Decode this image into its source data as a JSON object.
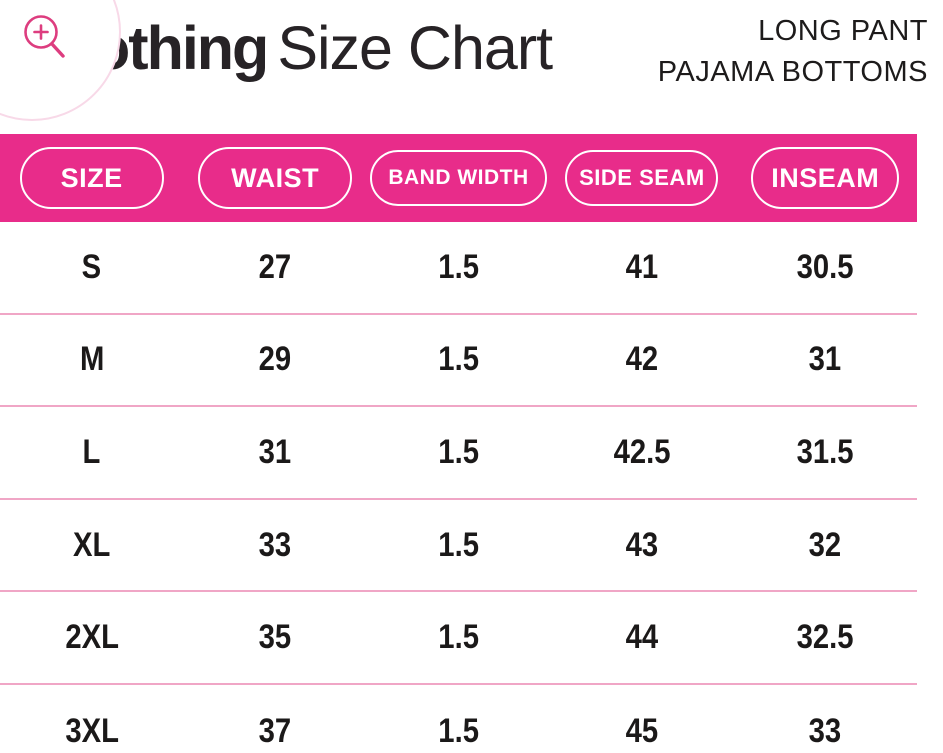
{
  "header": {
    "title_bold": "othing",
    "title_regular": "Size Chart",
    "product_line1": "LONG PANT",
    "product_line2": "PAJAMA BOTTOMS"
  },
  "zoom_button": {
    "icon": "magnifier-plus-icon"
  },
  "chart_data": {
    "type": "table",
    "title": "Size Chart",
    "columns": [
      "SIZE",
      "WAIST",
      "BAND WIDTH",
      "SIDE SEAM",
      "INSEAM"
    ],
    "rows": [
      [
        "S",
        "27",
        "1.5",
        "41",
        "30.5"
      ],
      [
        "M",
        "29",
        "1.5",
        "42",
        "31"
      ],
      [
        "L",
        "31",
        "1.5",
        "42.5",
        "31.5"
      ],
      [
        "XL",
        "33",
        "1.5",
        "43",
        "32"
      ],
      [
        "2XL",
        "35",
        "1.5",
        "44",
        "32.5"
      ],
      [
        "3XL",
        "37",
        "1.5",
        "45",
        "33"
      ]
    ]
  },
  "colors": {
    "band_pink": "#e82c8a",
    "divider_pink": "#f0a6c6",
    "ring_pink": "#f8d9e8",
    "magnifier_pink": "#dd3d7f",
    "text_dark": "#272326"
  }
}
